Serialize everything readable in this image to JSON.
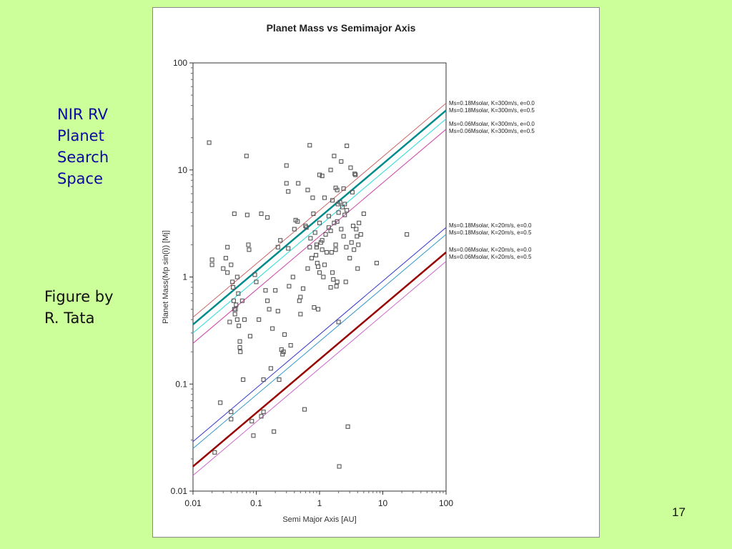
{
  "slide": {
    "left_text_lines": [
      "NIR RV",
      "Planet",
      "Search",
      "Space"
    ],
    "credit_lines": [
      "Figure by",
      "R. Tata"
    ],
    "slide_number": "17"
  },
  "chart_data": {
    "type": "scatter",
    "title": "Planet Mass vs Semimajor Axis",
    "xlabel": "Semi Major Axis [AU]",
    "ylabel": "Planet Mass(Mp sin(i)) [Mj]",
    "x_scale": "log",
    "y_scale": "log",
    "xlim": [
      0.01,
      100
    ],
    "ylim": [
      0.01,
      100
    ],
    "x_ticks": [
      "0.01",
      "0.1",
      "1",
      "10",
      "100"
    ],
    "y_ticks": [
      "0.01",
      "0.1",
      "1",
      "10",
      "100"
    ],
    "grid": false,
    "legend_position": "right",
    "marker": "open-square",
    "series": [
      {
        "name": "Ms=0.18Msolar, K=300m/s, e=0.0",
        "color": "#cc6666",
        "width": 1,
        "points": [
          [
            0.01,
            0.42
          ],
          [
            100,
            42
          ]
        ]
      },
      {
        "name": "Ms=0.18Msolar, K=300m/s, e=0.5",
        "color": "#008b8b",
        "width": 2.5,
        "points": [
          [
            0.01,
            0.36
          ],
          [
            100,
            36
          ]
        ]
      },
      {
        "name": "Ms=0.06Msolar, K=300m/s, e=0.0",
        "color": "#44dddd",
        "width": 1.2,
        "points": [
          [
            0.01,
            0.3
          ],
          [
            100,
            30
          ]
        ]
      },
      {
        "name": "Ms=0.06Msolar, K=300m/s, e=0.5",
        "color": "#cc44aa",
        "width": 1,
        "points": [
          [
            0.01,
            0.24
          ],
          [
            100,
            24
          ]
        ]
      },
      {
        "name": "Ms=0.18Msolar, K=20m/s, e=0.0",
        "color": "#3333cc",
        "width": 1,
        "points": [
          [
            0.01,
            0.029
          ],
          [
            100,
            2.9
          ]
        ]
      },
      {
        "name": "Ms=0.18Msolar, K=20m/s, e=0.5",
        "color": "#3399cc",
        "width": 1,
        "points": [
          [
            0.01,
            0.025
          ],
          [
            100,
            2.5
          ]
        ]
      },
      {
        "name": "Ms=0.06Msolar, K=20m/s, e=0.0",
        "color": "#990000",
        "width": 2.5,
        "points": [
          [
            0.01,
            0.017
          ],
          [
            100,
            1.7
          ]
        ]
      },
      {
        "name": "Ms=0.06Msolar, K=20m/s, e=0.5",
        "color": "#cc66cc",
        "width": 1,
        "points": [
          [
            0.01,
            0.014
          ],
          [
            100,
            1.4
          ]
        ]
      }
    ],
    "planets": [
      [
        0.018,
        18
      ],
      [
        0.02,
        1.45
      ],
      [
        0.02,
        1.3
      ],
      [
        0.022,
        0.023
      ],
      [
        0.027,
        0.067
      ],
      [
        0.03,
        1.2
      ],
      [
        0.033,
        1.5
      ],
      [
        0.035,
        1.9
      ],
      [
        0.035,
        1.1
      ],
      [
        0.038,
        0.38
      ],
      [
        0.04,
        0.055
      ],
      [
        0.04,
        0.047
      ],
      [
        0.04,
        1.3
      ],
      [
        0.042,
        0.9
      ],
      [
        0.043,
        0.8
      ],
      [
        0.044,
        0.6
      ],
      [
        0.045,
        0.5
      ],
      [
        0.046,
        0.45
      ],
      [
        0.047,
        0.5
      ],
      [
        0.048,
        0.55
      ],
      [
        0.05,
        1.0
      ],
      [
        0.05,
        0.4
      ],
      [
        0.052,
        0.7
      ],
      [
        0.053,
        0.35
      ],
      [
        0.055,
        0.22
      ],
      [
        0.056,
        0.2
      ],
      [
        0.045,
        3.9
      ],
      [
        0.055,
        0.25
      ],
      [
        0.06,
        0.6
      ],
      [
        0.062,
        0.11
      ],
      [
        0.065,
        0.4
      ],
      [
        0.07,
        13.5
      ],
      [
        0.072,
        3.8
      ],
      [
        0.075,
        2.0
      ],
      [
        0.077,
        1.8
      ],
      [
        0.08,
        0.28
      ],
      [
        0.085,
        0.045
      ],
      [
        0.09,
        0.033
      ],
      [
        0.095,
        1.05
      ],
      [
        0.1,
        0.9
      ],
      [
        0.11,
        0.4
      ],
      [
        0.12,
        3.9
      ],
      [
        0.12,
        0.05
      ],
      [
        0.13,
        0.055
      ],
      [
        0.13,
        0.11
      ],
      [
        0.14,
        0.75
      ],
      [
        0.15,
        3.6
      ],
      [
        0.15,
        0.6
      ],
      [
        0.16,
        0.5
      ],
      [
        0.17,
        0.14
      ],
      [
        0.18,
        0.33
      ],
      [
        0.19,
        0.036
      ],
      [
        0.2,
        0.75
      ],
      [
        0.22,
        1.9
      ],
      [
        0.22,
        0.48
      ],
      [
        0.23,
        0.11
      ],
      [
        0.24,
        2.2
      ],
      [
        0.25,
        0.21
      ],
      [
        0.26,
        0.19
      ],
      [
        0.27,
        0.2
      ],
      [
        0.28,
        0.29
      ],
      [
        0.3,
        11
      ],
      [
        0.3,
        7.5
      ],
      [
        0.32,
        6.3
      ],
      [
        0.32,
        1.85
      ],
      [
        0.33,
        0.82
      ],
      [
        0.35,
        0.23
      ],
      [
        0.38,
        1.0
      ],
      [
        0.4,
        2.8
      ],
      [
        0.42,
        3.4
      ],
      [
        0.45,
        3.3
      ],
      [
        0.46,
        7.5
      ],
      [
        0.48,
        0.6
      ],
      [
        0.5,
        0.65
      ],
      [
        0.5,
        0.45
      ],
      [
        0.55,
        0.78
      ],
      [
        0.58,
        0.058
      ],
      [
        0.6,
        3.0
      ],
      [
        0.62,
        2.9
      ],
      [
        0.65,
        6.5
      ],
      [
        0.65,
        1.2
      ],
      [
        0.7,
        17
      ],
      [
        0.7,
        1.9
      ],
      [
        0.72,
        2.3
      ],
      [
        0.75,
        1.5
      ],
      [
        0.78,
        5.5
      ],
      [
        0.8,
        3.9
      ],
      [
        0.82,
        0.52
      ],
      [
        0.85,
        2.6
      ],
      [
        0.88,
        1.6
      ],
      [
        0.9,
        2.0
      ],
      [
        0.9,
        1.9
      ],
      [
        0.92,
        1.35
      ],
      [
        0.95,
        1.25
      ],
      [
        0.95,
        0.5
      ],
      [
        1.0,
        9
      ],
      [
        1.0,
        3.2
      ],
      [
        1.0,
        1.1
      ],
      [
        1.05,
        2.1
      ],
      [
        1.1,
        8.8
      ],
      [
        1.1,
        2.2
      ],
      [
        1.1,
        1.8
      ],
      [
        1.15,
        1.0
      ],
      [
        1.2,
        5.5
      ],
      [
        1.2,
        1.3
      ],
      [
        1.25,
        2.5
      ],
      [
        1.3,
        1.7
      ],
      [
        1.4,
        3.7
      ],
      [
        1.4,
        2.9
      ],
      [
        1.5,
        10
      ],
      [
        1.5,
        2.7
      ],
      [
        1.5,
        0.8
      ],
      [
        1.55,
        1.7
      ],
      [
        1.6,
        5.2
      ],
      [
        1.6,
        1.1
      ],
      [
        1.65,
        0.95
      ],
      [
        1.7,
        13.5
      ],
      [
        1.7,
        3.2
      ],
      [
        1.8,
        6.8
      ],
      [
        1.8,
        2.0
      ],
      [
        1.8,
        1.8
      ],
      [
        1.85,
        0.82
      ],
      [
        1.9,
        6.5
      ],
      [
        1.9,
        3.3
      ],
      [
        1.9,
        0.9
      ],
      [
        1.95,
        4.8
      ],
      [
        2.0,
        4.0
      ],
      [
        2.0,
        0.38
      ],
      [
        2.05,
        0.017
      ],
      [
        2.1,
        5.0
      ],
      [
        2.2,
        12
      ],
      [
        2.2,
        2.8
      ],
      [
        2.3,
        4.5
      ],
      [
        2.4,
        6.7
      ],
      [
        2.4,
        2.4
      ],
      [
        2.5,
        4.8
      ],
      [
        2.5,
        3.8
      ],
      [
        2.6,
        0.9
      ],
      [
        2.65,
        1.9
      ],
      [
        2.7,
        16.8
      ],
      [
        2.7,
        4.2
      ],
      [
        2.8,
        0.04
      ],
      [
        3.0,
        1.5
      ],
      [
        3.1,
        10.5
      ],
      [
        3.2,
        2.1
      ],
      [
        3.3,
        6.2
      ],
      [
        3.4,
        3.0
      ],
      [
        3.5,
        1.8
      ],
      [
        3.6,
        9.2
      ],
      [
        3.7,
        9.0
      ],
      [
        3.8,
        2.8
      ],
      [
        3.9,
        2.4
      ],
      [
        4.0,
        1.2
      ],
      [
        4.1,
        2.0
      ],
      [
        4.2,
        3.2
      ],
      [
        4.5,
        2.5
      ],
      [
        5.0,
        3.9
      ],
      [
        8.0,
        1.35
      ],
      [
        24,
        2.5
      ]
    ]
  }
}
